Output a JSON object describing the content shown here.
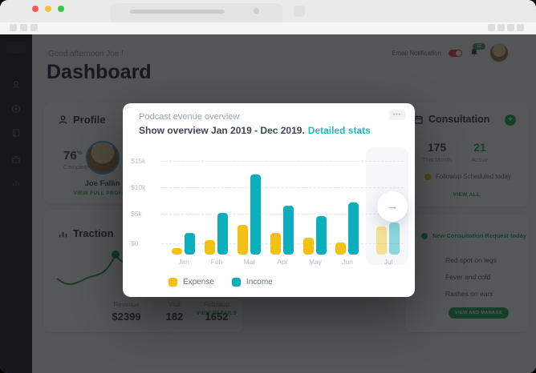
{
  "header": {
    "greeting": "Good afternoon Joe !",
    "title": "Dashboard",
    "email_notification_label": "Email Notification",
    "notification_count": "12"
  },
  "profile_card": {
    "title": "Profile",
    "percent_value": "76",
    "percent_unit": "%",
    "complete_label": "Complete",
    "user_name": "Joe Fallin",
    "link_label": "VIEW FULL PROFILE"
  },
  "traction_card": {
    "title": "Traction",
    "stats": [
      {
        "label": "Revenue",
        "value": "$2399"
      },
      {
        "label": "Visit",
        "value": "182"
      },
      {
        "label": "Followup",
        "value": "1652"
      }
    ],
    "link_label": "VIEW DETAILS"
  },
  "consultation_card": {
    "title": "Consultation",
    "stats": [
      {
        "value": "175",
        "label": "This Month"
      },
      {
        "value": "21",
        "label": "Active"
      }
    ],
    "note": "Followup Scheduled today",
    "link_label": "VIEW ALL"
  },
  "requests_card": {
    "heading": "New Consultation Request today",
    "items": [
      "Red spot on legs",
      "Fever and cold",
      "Rashes on ears"
    ],
    "button_label": "VIEW AND MANAGE"
  },
  "modal": {
    "title": "Podcast evenue overview",
    "subtitle": "Show overview Jan 2019 - Dec 2019.",
    "link_label": "Detailed stats",
    "menu_icon": "•••",
    "next_arrow": "→"
  },
  "chart_data": {
    "type": "bar",
    "title": "Podcast evenue overview",
    "subtitle": "Show overview Jan 2019 - Dec 2019",
    "categories": [
      "Jan",
      "Feb",
      "Mar",
      "Apr",
      "May",
      "Jun",
      "Jul"
    ],
    "series": [
      {
        "name": "Expense",
        "color": "#F2C114",
        "values": [
          1000,
          2300,
          4600,
          3400,
          2600,
          1900,
          4400
        ]
      },
      {
        "name": "Income",
        "color": "#0CAEBC",
        "values": [
          3400,
          6500,
          12500,
          7600,
          6000,
          8100,
          5000
        ]
      }
    ],
    "y_ticks": [
      "$15k",
      "$10k",
      "$5k",
      "$0"
    ],
    "y_tick_values": [
      15000,
      10000,
      5000,
      0
    ],
    "ylim": [
      0,
      15000
    ],
    "grid": "dashed-horizontal",
    "legend_position": "bottom",
    "highlighted_category": "Jul",
    "xlabel": "",
    "ylabel": ""
  },
  "colors": {
    "accent_green": "#27ae60",
    "expense_yellow": "#F2C114",
    "income_teal": "#0CAEBC",
    "link_teal": "#19BCC8",
    "toggle_red": "#F0564C"
  }
}
